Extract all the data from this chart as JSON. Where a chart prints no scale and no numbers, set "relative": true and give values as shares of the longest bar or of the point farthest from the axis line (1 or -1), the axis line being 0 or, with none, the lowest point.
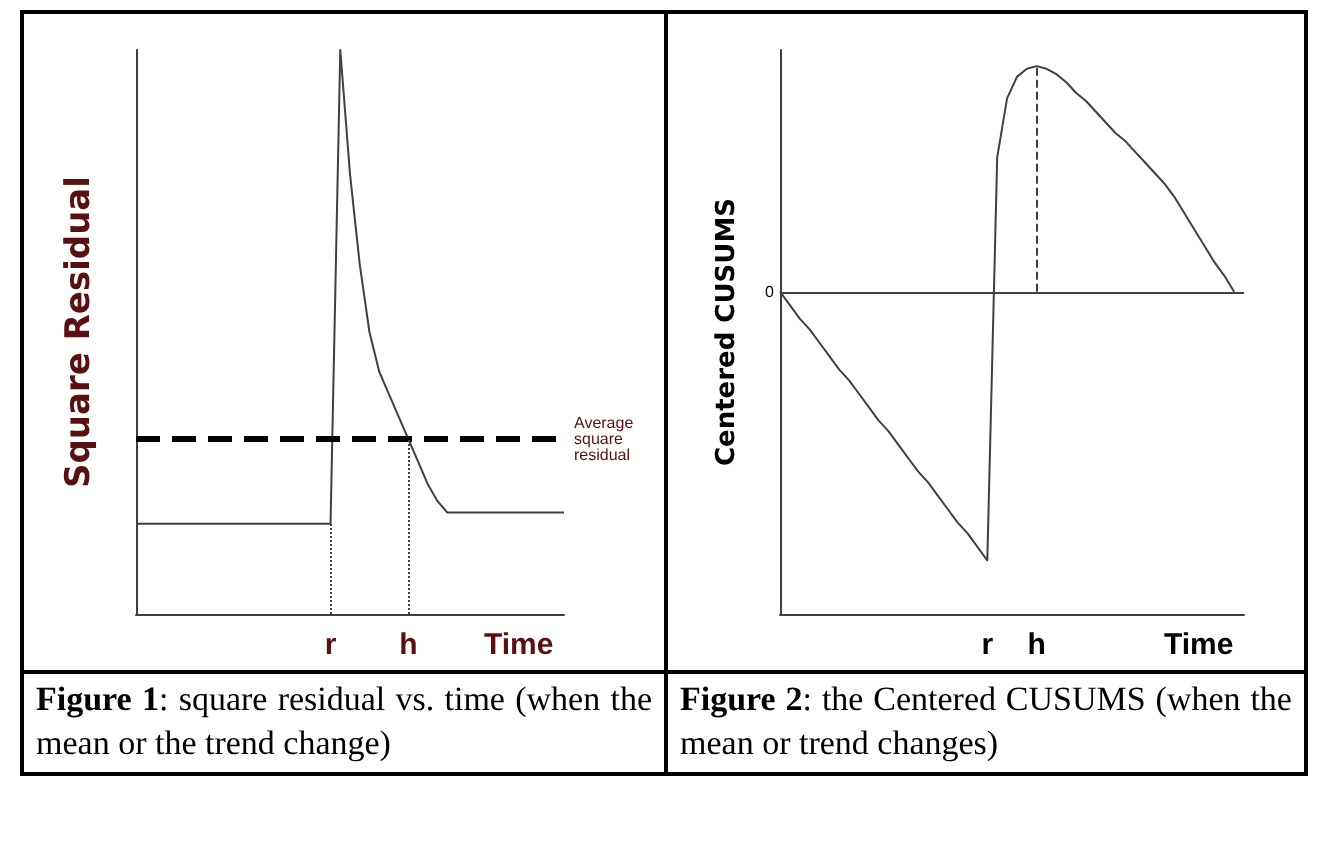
{
  "chart_data": [
    {
      "type": "line",
      "title": "Figure 1: square residual vs. time (when the mean or the trend change)",
      "xlabel": "Time",
      "ylabel": "Square Residual",
      "relative": true,
      "grid": false,
      "marker": "none",
      "line_style": "solid",
      "categories": [
        null,
        null,
        null,
        null,
        null,
        null,
        null,
        null,
        null,
        null,
        null,
        null,
        null,
        null,
        null,
        null,
        null,
        null,
        null,
        null,
        "r",
        null,
        null,
        null,
        null,
        null,
        null,
        null,
        "h",
        null,
        null,
        null,
        null,
        null,
        null,
        null,
        null,
        null,
        null,
        null,
        null,
        null,
        null,
        null,
        null
      ],
      "series": [
        {
          "color": "#404040",
          "values": [
            0.16,
            0.16,
            0.16,
            0.16,
            0.16,
            0.16,
            0.16,
            0.16,
            0.16,
            0.16,
            0.16,
            0.16,
            0.16,
            0.16,
            0.16,
            0.16,
            0.16,
            0.16,
            0.16,
            0.16,
            0.16,
            1.0,
            0.78,
            0.62,
            0.5,
            0.43,
            0.39,
            0.35,
            0.31,
            0.27,
            0.23,
            0.2,
            0.18,
            0.18,
            0.18,
            0.18,
            0.18,
            0.18,
            0.18,
            0.18,
            0.18,
            0.18,
            0.18,
            0.18,
            0.18
          ]
        }
      ],
      "ref_lines": [
        {
          "axis": "y",
          "value": 0.31,
          "label": "Average square residual",
          "color": "#000000",
          "line_style": "dashed"
        },
        {
          "axis": "x",
          "value": "r",
          "color": "#404040",
          "line_style": "dotted"
        },
        {
          "axis": "x",
          "value": "h",
          "color": "#404040",
          "line_style": "dotted"
        }
      ]
    },
    {
      "type": "line",
      "title": "Figure 2: the Centered CUSUMS (when the mean or trend changes)",
      "xlabel": "Time",
      "ylabel": "Centered CUSUMS",
      "relative": true,
      "grid": false,
      "marker": "none",
      "line_style": "solid",
      "categories": [
        null,
        null,
        null,
        null,
        null,
        null,
        null,
        null,
        null,
        null,
        null,
        null,
        null,
        null,
        null,
        null,
        null,
        null,
        null,
        null,
        null,
        "r",
        null,
        null,
        null,
        null,
        "h",
        null,
        null,
        null,
        null,
        null,
        null,
        null,
        null,
        null,
        null,
        null,
        null,
        null,
        null,
        null,
        null,
        null,
        null,
        null,
        null,
        null
      ],
      "series": [
        {
          "color": "#404040",
          "values": [
            0,
            -0.05,
            -0.1,
            -0.14,
            -0.19,
            -0.24,
            -0.29,
            -0.33,
            -0.38,
            -0.43,
            -0.48,
            -0.52,
            -0.57,
            -0.62,
            -0.67,
            -0.71,
            -0.76,
            -0.81,
            -0.86,
            -0.9,
            -0.95,
            -1,
            0.5,
            0.72,
            0.8,
            0.83,
            0.84,
            0.83,
            0.81,
            0.78,
            0.74,
            0.71,
            0.67,
            0.63,
            0.59,
            0.56,
            0.52,
            0.48,
            0.44,
            0.4,
            0.35,
            0.29,
            0.23,
            0.17,
            0.11,
            0.06,
            0,
            null
          ]
        }
      ],
      "ref_lines": [
        {
          "axis": "y",
          "value": 0,
          "color": "#404040",
          "line_style": "solid"
        },
        {
          "axis": "x",
          "value": "h",
          "color": "#404040",
          "line_style": "dashed"
        }
      ],
      "annotations": [
        "0"
      ]
    }
  ]
}
